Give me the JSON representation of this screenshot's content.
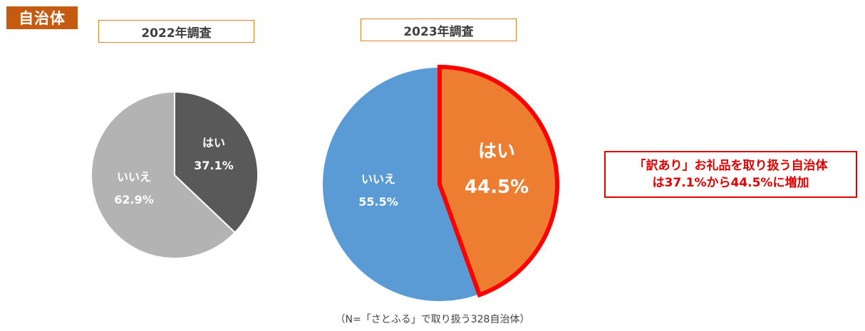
{
  "header": {
    "tag": "自治体"
  },
  "chart_data": [
    {
      "type": "pie",
      "title": "2022年調査",
      "categories": [
        "はい",
        "いいえ"
      ],
      "values": [
        37.1,
        62.9
      ],
      "value_labels": [
        "37.1%",
        "62.9%"
      ],
      "colors": [
        "#595959",
        "#B3B3B3"
      ]
    },
    {
      "type": "pie",
      "title": "2023年調査",
      "categories": [
        "はい",
        "いいえ"
      ],
      "values": [
        44.5,
        55.5
      ],
      "value_labels": [
        "44.5%",
        "55.5%"
      ],
      "colors": [
        "#ED7D31",
        "#5B9BD5"
      ],
      "highlight": {
        "slice": "はい",
        "outline_color": "#FF0000"
      }
    }
  ],
  "callout": {
    "line1": "「訳あり」お礼品を取り扱う自治体",
    "line2": "は37.1%から44.5%に増加"
  },
  "note": "（N=「さとふる」で取り扱う328自治体）"
}
